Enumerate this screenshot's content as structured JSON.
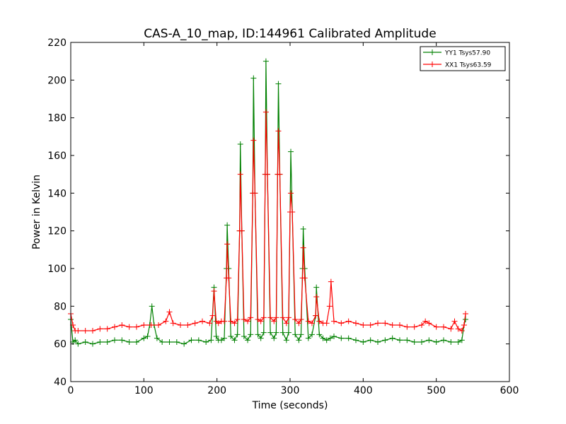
{
  "chart_data": {
    "type": "line",
    "title": "CAS-A_10_map, ID:144961 Calibrated Amplitude",
    "xlabel": "Time (seconds)",
    "ylabel": "Power in Kelvin",
    "xlim": [
      0,
      600
    ],
    "ylim": [
      40,
      220
    ],
    "xticks": [
      0,
      100,
      200,
      300,
      400,
      500,
      600
    ],
    "yticks": [
      40,
      60,
      80,
      100,
      120,
      140,
      160,
      180,
      200,
      220
    ],
    "grid": false,
    "legend_position": "top-right",
    "marker": "+",
    "series": [
      {
        "name": "YY1 Tsys57.90",
        "color": "#008000",
        "x": [
          0,
          3,
          6,
          10,
          20,
          30,
          40,
          50,
          60,
          70,
          80,
          90,
          100,
          105,
          108,
          111,
          114,
          118,
          125,
          135,
          145,
          155,
          165,
          175,
          185,
          192,
          196,
          199,
          202,
          206,
          210,
          213,
          214,
          216,
          219,
          224,
          228,
          231,
          232,
          234,
          237,
          242,
          246,
          249,
          250,
          252,
          256,
          260,
          264,
          266,
          267,
          269,
          273,
          278,
          281,
          283,
          284,
          286,
          290,
          295,
          298,
          300,
          301,
          303,
          307,
          312,
          315,
          317,
          318,
          320,
          325,
          330,
          335,
          336,
          340,
          345,
          350,
          355,
          360,
          370,
          380,
          390,
          400,
          410,
          420,
          430,
          440,
          450,
          460,
          470,
          480,
          490,
          500,
          510,
          520,
          530,
          535,
          538,
          540
        ],
        "values": [
          73,
          61,
          62,
          60,
          61,
          60,
          61,
          61,
          62,
          62,
          61,
          61,
          63,
          64,
          70,
          80,
          70,
          63,
          61,
          61,
          61,
          60,
          62,
          62,
          61,
          62,
          90,
          64,
          62,
          62,
          63,
          100,
          123,
          100,
          64,
          62,
          65,
          120,
          166,
          120,
          64,
          62,
          65,
          140,
          201,
          140,
          65,
          63,
          66,
          150,
          210,
          150,
          66,
          63,
          66,
          150,
          198,
          150,
          66,
          62,
          66,
          130,
          162,
          130,
          65,
          62,
          65,
          100,
          121,
          100,
          63,
          65,
          75,
          90,
          65,
          63,
          62,
          63,
          64,
          63,
          63,
          62,
          61,
          62,
          61,
          62,
          63,
          62,
          62,
          61,
          61,
          62,
          61,
          62,
          61,
          61,
          62,
          70,
          73
        ]
      },
      {
        "name": "XX1 Tsys63.59",
        "color": "#ff0000",
        "x": [
          0,
          3,
          6,
          10,
          20,
          30,
          40,
          50,
          60,
          70,
          80,
          90,
          100,
          110,
          120,
          130,
          135,
          140,
          150,
          160,
          170,
          180,
          190,
          194,
          196,
          199,
          202,
          206,
          210,
          213,
          214,
          216,
          219,
          224,
          228,
          231,
          232,
          234,
          237,
          242,
          246,
          249,
          250,
          252,
          256,
          260,
          264,
          266,
          267,
          269,
          273,
          278,
          281,
          283,
          284,
          286,
          290,
          295,
          298,
          300,
          301,
          303,
          307,
          312,
          315,
          317,
          318,
          320,
          325,
          330,
          335,
          336,
          340,
          345,
          350,
          354,
          356,
          360,
          370,
          380,
          390,
          400,
          410,
          420,
          430,
          440,
          450,
          460,
          470,
          480,
          485,
          490,
          500,
          510,
          520,
          525,
          530,
          535,
          538,
          540
        ],
        "values": [
          76,
          70,
          67,
          67,
          67,
          67,
          68,
          68,
          69,
          70,
          69,
          69,
          70,
          70,
          70,
          72,
          77,
          71,
          70,
          70,
          71,
          72,
          71,
          75,
          88,
          72,
          71,
          72,
          72,
          95,
          113,
          95,
          72,
          71,
          73,
          120,
          150,
          120,
          73,
          72,
          74,
          140,
          168,
          140,
          73,
          72,
          74,
          150,
          183,
          150,
          74,
          72,
          74,
          150,
          173,
          150,
          74,
          71,
          74,
          130,
          140,
          130,
          73,
          71,
          73,
          95,
          111,
          95,
          72,
          71,
          75,
          85,
          72,
          71,
          71,
          80,
          93,
          72,
          71,
          72,
          71,
          70,
          70,
          71,
          71,
          70,
          70,
          69,
          69,
          70,
          72,
          71,
          69,
          69,
          68,
          72,
          68,
          67,
          70,
          76
        ]
      }
    ]
  }
}
